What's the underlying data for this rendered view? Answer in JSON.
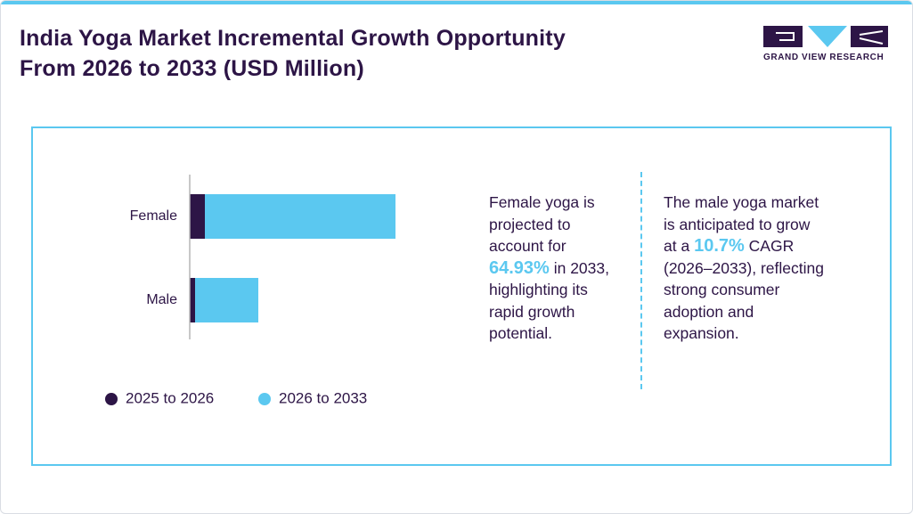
{
  "header": {
    "title_lines": [
      "India Yoga Market Incremental Growth Opportunity",
      "From 2026 to 2033 (USD Million)"
    ],
    "brand": "GRAND VIEW RESEARCH"
  },
  "chart_data": {
    "type": "stacked-barh",
    "categories": [
      "Female",
      "Male"
    ],
    "series": [
      {
        "name": "2025 to 2026",
        "color": "#2d1546",
        "values": [
          17,
          6
        ]
      },
      {
        "name": "2026 to 2033",
        "color": "#5bc8f0",
        "values": [
          214,
          71
        ]
      }
    ],
    "xlim": [
      0,
      300
    ]
  },
  "notes": [
    {
      "before": "Female yoga is projected to account for",
      "highlight": "64.93%",
      "after": "in 2033, highlighting its rapid growth potential."
    },
    {
      "before": "The male yoga market is anticipated to grow at a",
      "highlight": "10.7%",
      "after": "CAGR (2026–2033), reflecting strong consumer adoption and expansion."
    }
  ]
}
